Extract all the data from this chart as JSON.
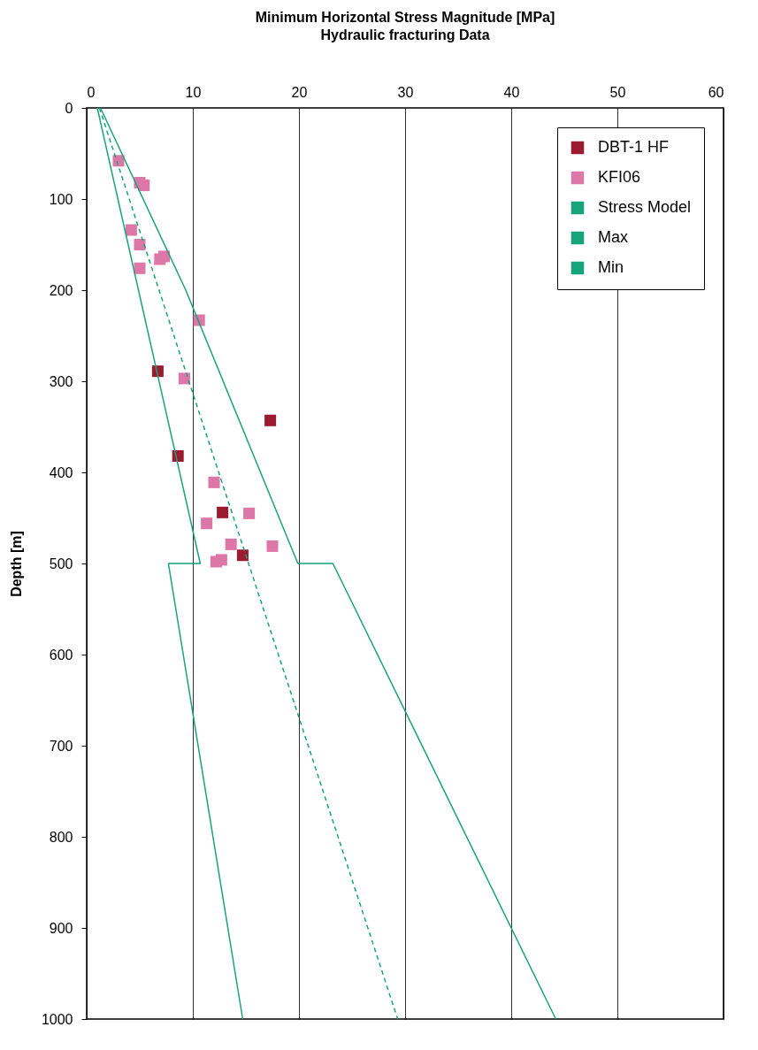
{
  "chart_data": {
    "type": "scatter",
    "title": "Minimum Horizontal Stress Magnitude  [MPa]",
    "subtitle": "Hydraulic fracturing Data",
    "ylabel": "Depth  [m]",
    "xlim": [
      0,
      60
    ],
    "xticks": [
      0,
      10,
      20,
      30,
      40,
      50,
      60
    ],
    "ylim": [
      1000,
      0
    ],
    "yticks": [
      0,
      100,
      200,
      300,
      400,
      500,
      600,
      700,
      800,
      900,
      1000
    ],
    "grid": "x",
    "legend": "top right",
    "series": [
      {
        "name": "DBT-1 HF",
        "marker": "square",
        "color": "#9b1b30",
        "x": [
          6.7,
          17.3,
          8.6,
          12.8,
          14.7
        ],
        "values": [
          289,
          343,
          382,
          444,
          491
        ]
      },
      {
        "name": "KFI06",
        "marker": "square",
        "color": "#dd77a8",
        "x": [
          3,
          5,
          5.4,
          4.2,
          5,
          7.3,
          6.9,
          5,
          10.6,
          9.2,
          12,
          15.3,
          11.3,
          13.6,
          17.5,
          12.7,
          12.2
        ],
        "values": [
          58,
          82,
          85,
          134,
          150,
          163,
          166,
          176,
          233,
          297,
          411,
          445,
          456,
          479,
          481,
          496,
          498
        ]
      },
      {
        "name": "Stress Model",
        "type": "line",
        "line_style": "dashed",
        "color": "#18a37a",
        "x": [
          1.2,
          29.3
        ],
        "values": [
          0,
          1000
        ]
      },
      {
        "name": "Max",
        "type": "line",
        "line_style": "solid",
        "color": "#18a37a",
        "x": [
          1.3,
          9.3,
          19.9,
          23.2,
          44.2
        ],
        "values": [
          0,
          199,
          500,
          500,
          1000
        ]
      },
      {
        "name": "Min",
        "type": "line",
        "line_style": "solid",
        "color": "#18a37a",
        "x": [
          1,
          10.7,
          7.7,
          14.7
        ],
        "values": [
          0,
          500,
          500,
          1000
        ]
      }
    ]
  }
}
